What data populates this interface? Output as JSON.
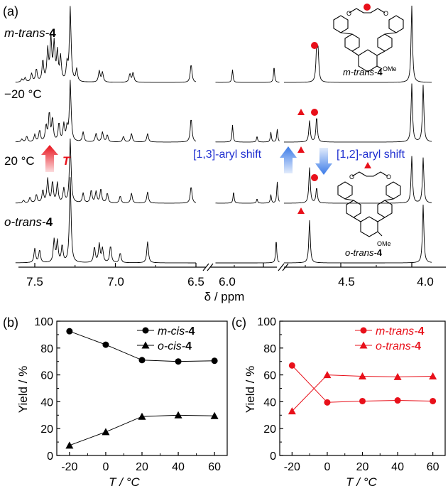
{
  "panel_a": {
    "label": "(a)",
    "traces": [
      {
        "label_prefix": "m-trans-",
        "label_bold": "4"
      },
      {
        "label_prefix": "−20 °C",
        "label_bold": ""
      },
      {
        "label_prefix": "20 °C",
        "label_bold": ""
      },
      {
        "label_prefix": "o-trans-",
        "label_bold": "4"
      }
    ],
    "temp_arrow_label": "T",
    "shift_13_label": "[1,3]-aryl shift",
    "shift_12_label": "[1,2]-aryl shift",
    "xlabel": "δ / ppm",
    "xticks": [
      "7.5",
      "7.0",
      "6.5",
      "6.0",
      "4.5",
      "4.0"
    ],
    "structure_top": {
      "name_prefix": "m-trans-",
      "name_bold": "4",
      "substituent": "OMe"
    },
    "structure_bottom": {
      "name_prefix": "o-trans-",
      "name_bold": "4",
      "substituent": "OMe"
    },
    "colors": {
      "spectrum": "#000000",
      "marker": "#e8101a",
      "shift_arrow": "#1f2fd0"
    }
  },
  "chart_data": [
    {
      "panel": "(b)",
      "type": "line",
      "xlabel": "T / °C",
      "ylabel": "Yield / %",
      "x": [
        -20,
        0,
        20,
        40,
        60
      ],
      "xticks": [
        "-20",
        "0",
        "20",
        "40",
        "60"
      ],
      "yticks": [
        "0",
        "20",
        "40",
        "60",
        "80",
        "100"
      ],
      "xlim": [
        -27,
        67
      ],
      "ylim": [
        0,
        100
      ],
      "legend_position": "top-right",
      "color": "#000000",
      "series": [
        {
          "name_prefix": "m-cis-",
          "name_bold": "4",
          "marker": "circle",
          "values": [
            92.5,
            82.5,
            71,
            70,
            70.5
          ]
        },
        {
          "name_prefix": "o-cis-",
          "name_bold": "4",
          "marker": "triangle",
          "values": [
            7.5,
            17.5,
            29,
            30,
            29.5
          ]
        }
      ]
    },
    {
      "panel": "(c)",
      "type": "line",
      "xlabel": "T / °C",
      "ylabel": "Yield / %",
      "x": [
        -20,
        0,
        20,
        40,
        60
      ],
      "xticks": [
        "-20",
        "0",
        "20",
        "40",
        "60"
      ],
      "yticks": [
        "0",
        "20",
        "40",
        "60",
        "80",
        "100"
      ],
      "xlim": [
        -27,
        67
      ],
      "ylim": [
        0,
        100
      ],
      "legend_position": "top-right",
      "color": "#e8101a",
      "series": [
        {
          "name_prefix": "m-trans-",
          "name_bold": "4",
          "marker": "circle",
          "values": [
            67,
            39.5,
            40.5,
            41,
            40.5
          ]
        },
        {
          "name_prefix": "o-trans-",
          "name_bold": "4",
          "marker": "triangle",
          "values": [
            33,
            60,
            59,
            58.5,
            59
          ]
        }
      ]
    }
  ]
}
